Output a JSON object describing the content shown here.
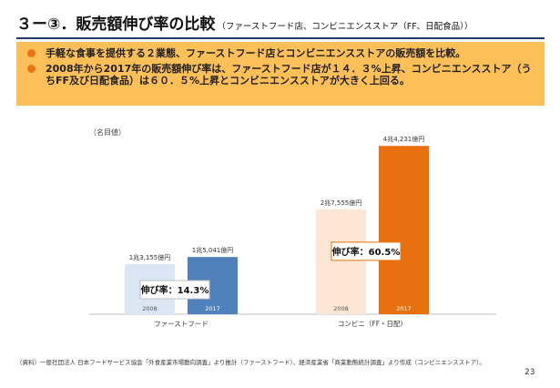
{
  "slide": {
    "title": "３ー③．販売額伸び率の比較",
    "subtitle": "（ファーストフード店、コンビニエンスストア（FF、日配食品））",
    "bullets": [
      "手軽な食事を提供する２業態、ファーストフード店とコンビニエンスストアの販売額を比較。",
      "2008年から2017年の販売額伸び率は、ファーストフード店が１４．３%上昇、コンビニエンスストア（うちFF及び日配食品）は６０．５%上昇とコンビニエンスストアが大きく上回る。"
    ],
    "footnote": "（資料）一般社団法人 日本フードサービス協会「外食産業市場動向調査」より推計（ファーストフード）、経済産業省「商業動態統計調査」より作成（コンビニエンスストア）。",
    "page_number": "23",
    "accent_color": "#fdbf58",
    "bullet_color": "#e8751a"
  },
  "chart_data": {
    "type": "bar",
    "unit_label": "（名目値）",
    "ylim": [
      0,
      45000
    ],
    "groups": [
      {
        "name": "ファーストフード",
        "bars": [
          {
            "year": "2008",
            "value": 13155,
            "label": "1兆3,155億円",
            "color": "#dbe6f4"
          },
          {
            "year": "2017",
            "value": 15041,
            "label": "1兆5,041億円",
            "color": "#4f81bd"
          }
        ],
        "growth_label_prefix": "伸び率：",
        "growth_label_value": "14.3%"
      },
      {
        "name": "コンビニ（FF・日配）",
        "bars": [
          {
            "year": "2008",
            "value": 27555,
            "label": "2兆7,555億円",
            "color": "#fde7d4"
          },
          {
            "year": "2017",
            "value": 44231,
            "label": "4兆4,231億円",
            "color": "#e8700f"
          }
        ],
        "growth_label_prefix": "伸び率：",
        "growth_label_value": "60.5%"
      }
    ],
    "grid": false,
    "legend": "none"
  }
}
